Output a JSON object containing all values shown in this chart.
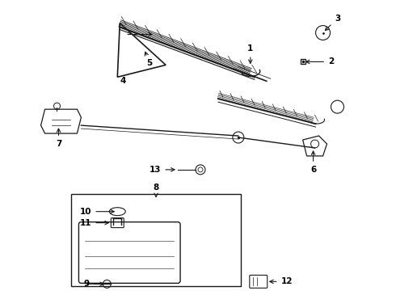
{
  "bg_color": "#ffffff",
  "line_color": "#1a1a1a",
  "text_color": "#000000",
  "fig_w": 4.9,
  "fig_h": 3.6,
  "dpi": 100
}
